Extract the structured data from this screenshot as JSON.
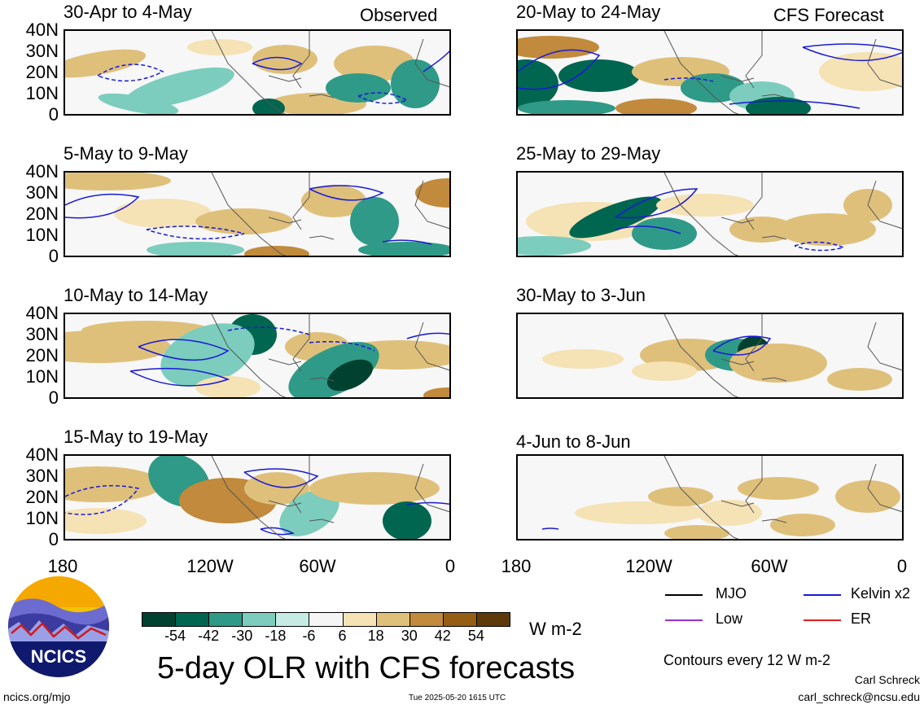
{
  "left_column": {
    "header_right": "Observed",
    "panels": [
      {
        "title": "30-Apr to 4-May"
      },
      {
        "title": "5-May to 9-May"
      },
      {
        "title": "10-May to 14-May"
      },
      {
        "title": "15-May to 19-May"
      }
    ]
  },
  "right_column": {
    "header_right": "CFS Forecast",
    "panels": [
      {
        "title": "20-May to 24-May"
      },
      {
        "title": "25-May to 29-May"
      },
      {
        "title": "30-May to 3-Jun"
      },
      {
        "title": "4-Jun to 8-Jun"
      }
    ]
  },
  "axes": {
    "y_ticks": [
      "40N",
      "30N",
      "20N",
      "10N",
      "0"
    ],
    "x_ticks": [
      "180",
      "120W",
      "60W",
      "0"
    ]
  },
  "colorbar": {
    "labels": [
      "-54",
      "-42",
      "-30",
      "-18",
      "-6",
      "6",
      "18",
      "30",
      "42",
      "54"
    ],
    "colors": [
      "#00412f",
      "#006650",
      "#2f9a87",
      "#7ccdbd",
      "#c6ebe4",
      "#f5f5f5",
      "#f5e2b5",
      "#dfc07b",
      "#c18a3c",
      "#955e14",
      "#5e3a0b"
    ],
    "units": "W m-2"
  },
  "legend": {
    "items": [
      {
        "label": "MJO",
        "color": "#000000"
      },
      {
        "label": "Kelvin x2",
        "color": "#1a1ad6"
      },
      {
        "label": "Low",
        "color": "#9b30c9"
      },
      {
        "label": "ER",
        "color": "#e02020"
      }
    ],
    "contour_note": "Contours every 12 W m-2"
  },
  "main_title": "5-day OLR with CFS forecasts",
  "logo": {
    "text": "NCICS"
  },
  "footer": {
    "left": "ncics.org/mjo",
    "center": "Tue 2025-05-20 1615 UTC",
    "author": "Carl Schreck",
    "email": "carl_schreck@ncsu.edu"
  }
}
